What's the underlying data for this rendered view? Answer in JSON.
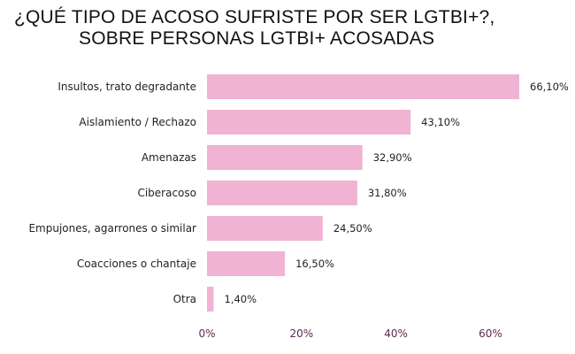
{
  "chart_data": {
    "type": "bar",
    "orientation": "horizontal",
    "title": "¿QUÉ TIPO DE ACOSO SUFRISTE POR SER LGTBI+?,",
    "subtitle": "SOBRE PERSONAS LGTBI+ ACOSADAS",
    "categories": [
      "Insultos, trato degradante",
      "Aislamiento / Rechazo",
      "Amenazas",
      "Ciberacoso",
      "Empujones, agarrones o similar",
      "Coacciones o chantaje",
      "Otra"
    ],
    "values": [
      66.1,
      43.1,
      32.9,
      31.8,
      24.5,
      16.5,
      1.4
    ],
    "value_labels": [
      "66,10%",
      "43,10%",
      "32,90%",
      "31,80%",
      "24,50%",
      "16,50%",
      "1,40%"
    ],
    "xlim": [
      0,
      66.1
    ],
    "xticks": [
      0,
      20,
      40,
      60
    ],
    "xtick_labels": [
      "0%",
      "20%",
      "40%",
      "60%"
    ],
    "grid": false,
    "legend": "none",
    "bar_color": "#f0b3d3",
    "tick_color": "#5b2a52",
    "text_color": "#222222"
  }
}
